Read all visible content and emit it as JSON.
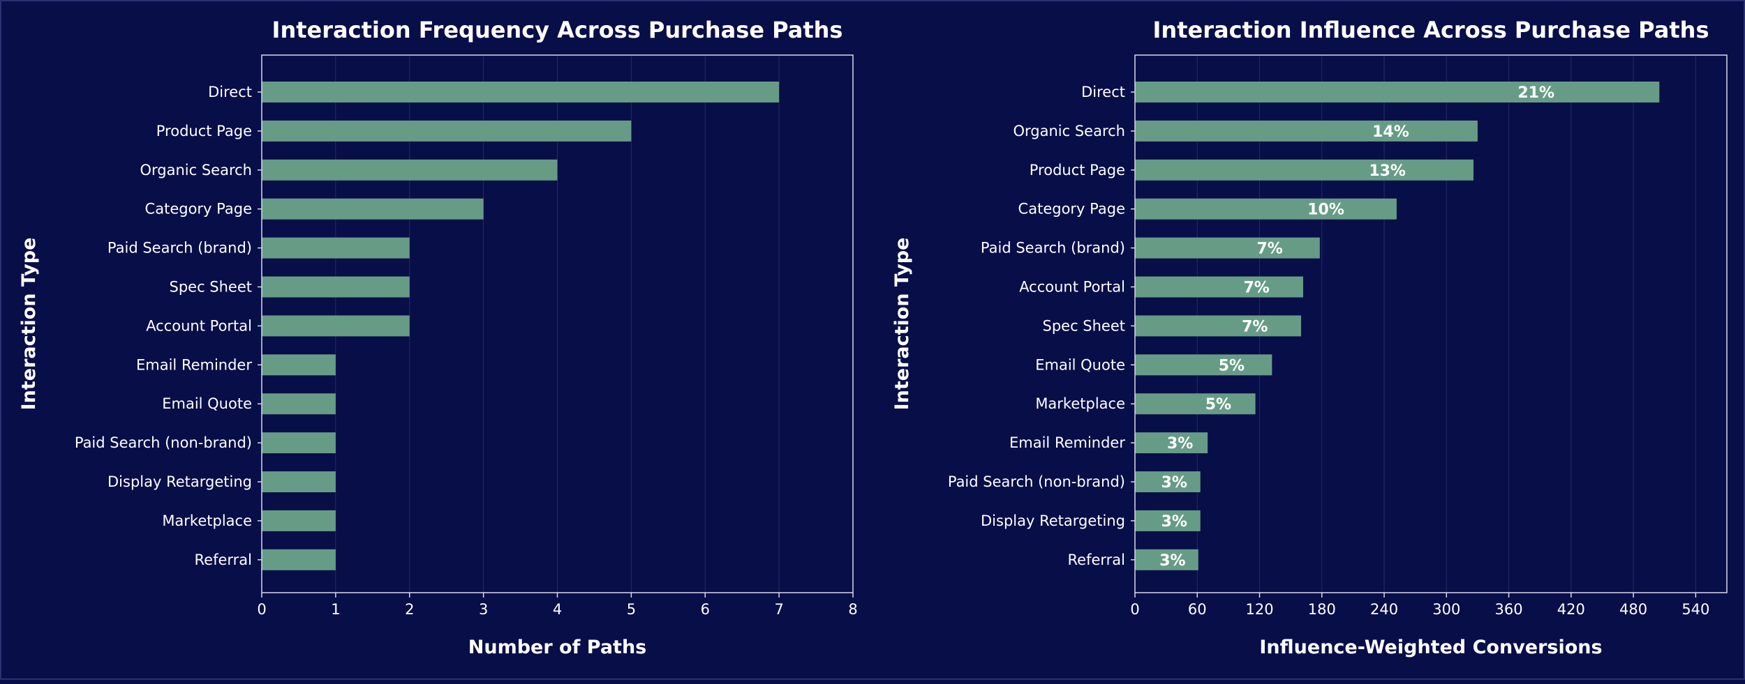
{
  "colors": {
    "background": "#080e48",
    "bar": "#669c85",
    "text": "#ffffff",
    "axis": "#d8dae8",
    "grid": "#3a4075"
  },
  "chart_data": [
    {
      "type": "bar",
      "orientation": "horizontal",
      "title": "Interaction Frequency Across Purchase Paths",
      "xlabel": "Number of Paths",
      "ylabel": "Interaction Type",
      "xlim": [
        0,
        8
      ],
      "xticks": [
        0,
        1,
        2,
        3,
        4,
        5,
        6,
        7,
        8
      ],
      "xtick_labels": [
        "0",
        "1",
        "2",
        "3",
        "4",
        "5",
        "6",
        "7",
        "8"
      ],
      "categories": [
        "Direct",
        "Product Page",
        "Organic Search",
        "Category Page",
        "Paid Search (brand)",
        "Spec Sheet",
        "Account Portal",
        "Email Reminder",
        "Email Quote",
        "Paid Search (non-brand)",
        "Display Retargeting",
        "Marketplace",
        "Referral"
      ],
      "values": [
        7,
        5,
        4,
        3,
        2,
        2,
        2,
        1,
        1,
        1,
        1,
        1,
        1
      ],
      "data_labels": null,
      "grid": "vertical"
    },
    {
      "type": "bar",
      "orientation": "horizontal",
      "title": "Interaction Influence Across Purchase Paths",
      "xlabel": "Influence-Weighted Conversions",
      "ylabel": "Interaction Type",
      "xlim": [
        0,
        570
      ],
      "xticks": [
        0,
        60,
        120,
        180,
        240,
        300,
        360,
        420,
        480,
        540
      ],
      "xtick_labels": [
        "0",
        "60",
        "120",
        "180",
        "240",
        "300",
        "360",
        "420",
        "480",
        "540"
      ],
      "categories": [
        "Direct",
        "Organic Search",
        "Product Page",
        "Category Page",
        "Paid Search (brand)",
        "Account Portal",
        "Spec Sheet",
        "Email Quote",
        "Marketplace",
        "Email Reminder",
        "Paid Search (non-brand)",
        "Display Retargeting",
        "Referral"
      ],
      "values": [
        505,
        330,
        326,
        252,
        178,
        162,
        160,
        132,
        116,
        70,
        63,
        63,
        61
      ],
      "data_labels": [
        "21%",
        "14%",
        "13%",
        "10%",
        "7%",
        "7%",
        "7%",
        "5%",
        "5%",
        "3%",
        "3%",
        "3%",
        "3%"
      ],
      "grid": "vertical"
    }
  ]
}
